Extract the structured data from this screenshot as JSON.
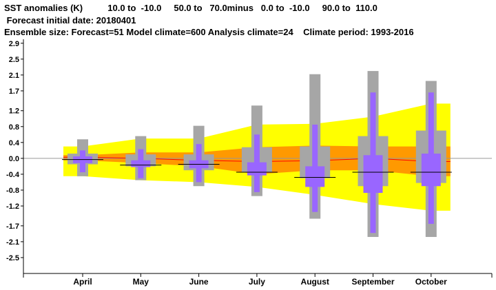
{
  "header": {
    "line1": "SST anomalies (K)          10.0 to  -10.0     50.0 to   70.0minus   0.0 to  -10.0     90.0 to  110.0",
    "line2": " Forecast initial date: 20180401",
    "line3": "Ensemble size: Forecast=51 Model climate=600 Analysis climate=24    Climate period: 1993-2016"
  },
  "colors": {
    "climate_outer": "#ffff00",
    "climate_inner": "#ff9900",
    "climate_median": "#ff0000",
    "model_box": "#a6a6a6",
    "forecast_box": "#9966ff",
    "median_line": "#000000",
    "zero_line": "#999999"
  },
  "chart_data": {
    "type": "box",
    "categories": [
      "April",
      "May",
      "June",
      "July",
      "August",
      "September",
      "October"
    ],
    "y_ticks": [
      "2.9",
      "2.5",
      "2.1",
      "1.7",
      "1.2",
      "0.8",
      "0.4",
      "0.0",
      "-0.4",
      "-0.8",
      "-1.2",
      "-1.7",
      "-2.1",
      "-2.5"
    ],
    "ylim": [
      -2.9,
      3.0
    ],
    "climate_band": {
      "outer_upper": [
        0.3,
        0.5,
        0.5,
        0.85,
        0.87,
        1.05,
        1.38
      ],
      "inner_upper": [
        0.08,
        0.15,
        0.15,
        0.28,
        0.32,
        0.3,
        0.3
      ],
      "median": [
        0.03,
        0.0,
        -0.05,
        -0.08,
        -0.06,
        0.0,
        -0.08
      ],
      "inner_lower": [
        -0.05,
        -0.12,
        -0.2,
        -0.4,
        -0.3,
        -0.3,
        -0.45
      ],
      "outer_lower": [
        -0.45,
        -0.55,
        -0.6,
        -0.72,
        -0.92,
        -1.15,
        -1.32
      ]
    },
    "model_climate": [
      {
        "min": -0.45,
        "q1": -0.15,
        "q3": 0.12,
        "max": 0.48
      },
      {
        "min": -0.55,
        "q1": -0.2,
        "q3": 0.1,
        "max": 0.56
      },
      {
        "min": -0.7,
        "q1": -0.3,
        "q3": 0.1,
        "max": 0.82
      },
      {
        "min": -0.95,
        "q1": -0.35,
        "q3": 0.28,
        "max": 1.33
      },
      {
        "min": -1.52,
        "q1": -0.5,
        "q3": 0.3,
        "max": 2.12
      },
      {
        "min": -1.98,
        "q1": -0.7,
        "q3": 0.56,
        "max": 2.2
      },
      {
        "min": -1.98,
        "q1": -0.62,
        "q3": 0.7,
        "max": 1.95
      }
    ],
    "forecast": [
      {
        "min": -0.35,
        "q1": -0.12,
        "median": -0.03,
        "q3": 0.05,
        "max": 0.2
      },
      {
        "min": -0.5,
        "q1": -0.22,
        "median": -0.17,
        "q3": -0.05,
        "max": 0.23
      },
      {
        "min": -0.6,
        "q1": -0.25,
        "median": -0.15,
        "q3": -0.05,
        "max": 0.36
      },
      {
        "min": -0.85,
        "q1": -0.43,
        "median": -0.35,
        "q3": -0.1,
        "max": 0.6
      },
      {
        "min": -1.35,
        "q1": -0.72,
        "median": -0.48,
        "q3": -0.2,
        "max": 0.85
      },
      {
        "min": -1.88,
        "q1": -0.87,
        "median": -0.35,
        "q3": 0.08,
        "max": 1.66
      },
      {
        "min": -1.65,
        "q1": -0.7,
        "median": -0.35,
        "q3": 0.12,
        "max": 1.66
      }
    ]
  }
}
